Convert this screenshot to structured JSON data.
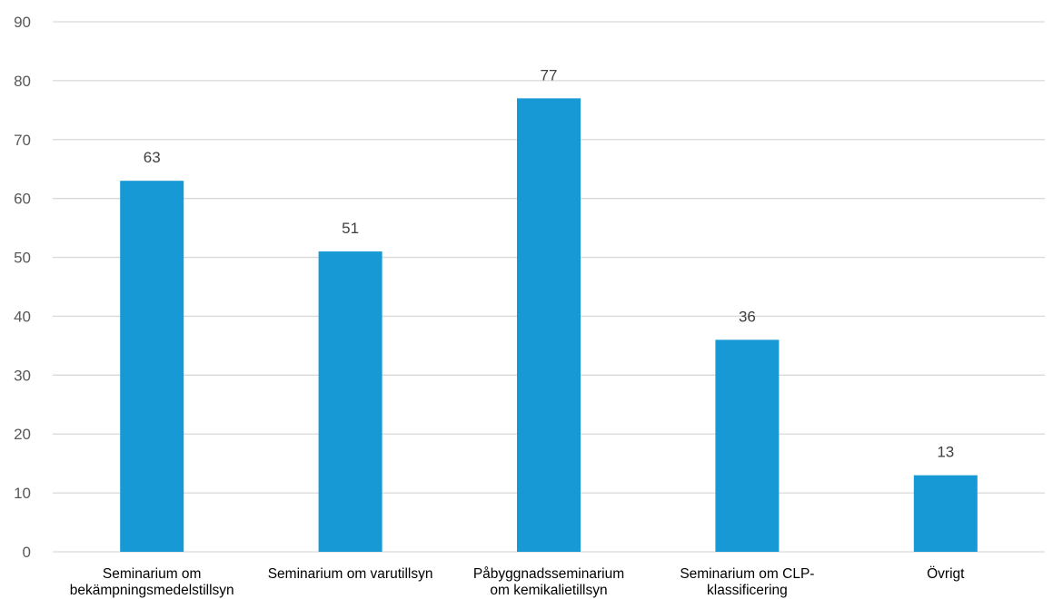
{
  "chart_data": {
    "type": "bar",
    "categories": [
      [
        "Seminarium om",
        "bekämpningsmedelstillsyn"
      ],
      [
        "Seminarium om varutillsyn"
      ],
      [
        "Påbyggnadsseminarium",
        "om kemikalietillsyn"
      ],
      [
        "Seminarium om CLP-",
        "klassificering"
      ],
      [
        "Övrigt"
      ]
    ],
    "values": [
      63,
      51,
      77,
      36,
      13
    ],
    "data_labels": [
      "63",
      "51",
      "77",
      "36",
      "13"
    ],
    "title": "",
    "xlabel": "",
    "ylabel": "",
    "ylim": [
      0,
      90
    ],
    "yticks": [
      0,
      10,
      20,
      30,
      40,
      50,
      60,
      70,
      80,
      90
    ],
    "grid": true,
    "legend": "none",
    "colors": {
      "bar": "#1799d6",
      "grid": "#d9d9d9",
      "tick_text": "#595959",
      "label_text": "#404040",
      "category_text": "#000000"
    }
  }
}
